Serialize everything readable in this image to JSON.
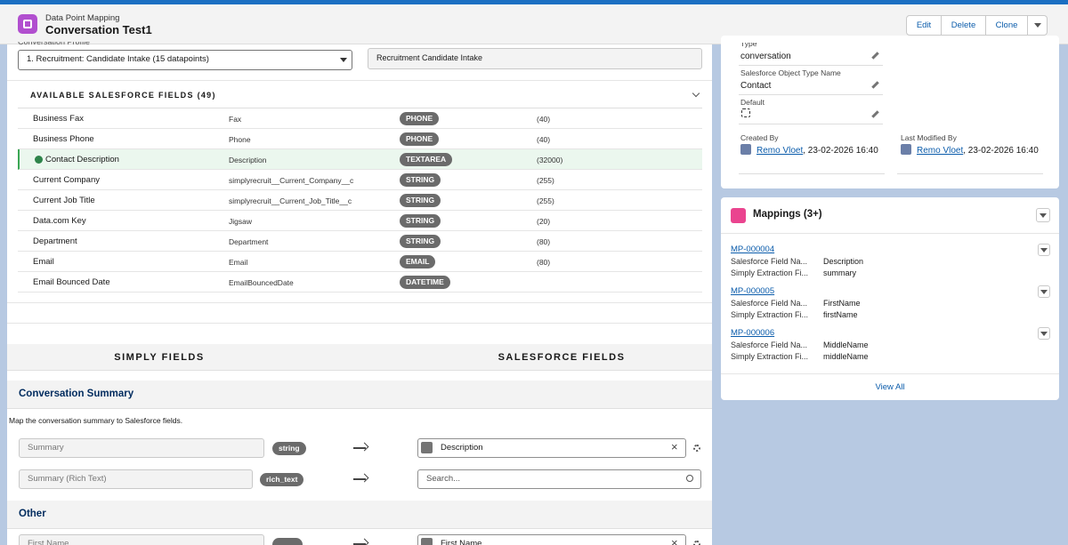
{
  "header": {
    "object_type": "Data Point Mapping",
    "title": "Conversation Test1",
    "buttons": [
      "Edit",
      "Delete",
      "Clone"
    ]
  },
  "profile": {
    "label": "Conversation Profile",
    "selected": "1. Recruitment: Candidate Intake (15 datapoints)",
    "name": "Recruitment Candidate Intake"
  },
  "available_fields": {
    "title": "AVAILABLE SALESFORCE FIELDS (49)",
    "rows": [
      [
        "Business Fax",
        "Fax",
        "PHONE",
        "(40)"
      ],
      [
        "Business Phone",
        "Phone",
        "PHONE",
        "(40)"
      ],
      [
        "Contact Description",
        "Description",
        "TEXTAREA",
        "(32000)"
      ],
      [
        "Current Company",
        "simplyrecruit__Current_Company__c",
        "STRING",
        "(255)"
      ],
      [
        "Current Job Title",
        "simplyrecruit__Current_Job_Title__c",
        "STRING",
        "(255)"
      ],
      [
        "Data.com Key",
        "Jigsaw",
        "STRING",
        "(20)"
      ],
      [
        "Department",
        "Department",
        "STRING",
        "(80)"
      ],
      [
        "Email",
        "Email",
        "EMAIL",
        "(80)"
      ],
      [
        "Email Bounced Date",
        "EmailBouncedDate",
        "DATETIME"
      ]
    ]
  },
  "columns": [
    "SIMPLY FIELDS",
    "SALESFORCE FIELDS"
  ],
  "sections": [
    {
      "title": "Conversation Summary",
      "description": "Map the conversation summary to Salesforce fields.",
      "rows": [
        {
          "source": "Summary",
          "type": "string",
          "target": "Description"
        },
        {
          "source": "Summary (Rich Text)",
          "type": "rich_text",
          "target": "Search..."
        }
      ]
    },
    {
      "title": "Other",
      "rows": [
        {
          "source": "First Name",
          "target": "First Name"
        }
      ]
    }
  ],
  "details": [
    {
      "label": "Type",
      "value": "conversation"
    },
    {
      "label": "Salesforce Object Type Name",
      "value": "Contact"
    },
    {
      "label": "Default"
    }
  ],
  "audit": [
    {
      "label": "Created By",
      "user": "Remo Vloet",
      "stamp": ", 23-02-2026 16:40"
    },
    {
      "label": "Last Modified By",
      "user": "Remo Vloet",
      "stamp": ", 23-02-2026 16:40"
    }
  ],
  "mappings": {
    "title": "Mappings (3+)",
    "items": [
      {
        "id": "MP-000004",
        "fields": [
          [
            "Salesforce Field Na...",
            "Description"
          ],
          [
            "Simply Extraction Fi...",
            "summary"
          ]
        ]
      },
      {
        "id": "MP-000005",
        "fields": [
          [
            "Salesforce Field Na...",
            "FirstName"
          ],
          [
            "Simply Extraction Fi...",
            "firstName"
          ]
        ]
      },
      {
        "id": "MP-000006",
        "fields": [
          [
            "Salesforce Field Na...",
            "MiddleName"
          ],
          [
            "Simply Extraction Fi...",
            "middleName"
          ]
        ]
      }
    ],
    "view_all": "View All"
  }
}
